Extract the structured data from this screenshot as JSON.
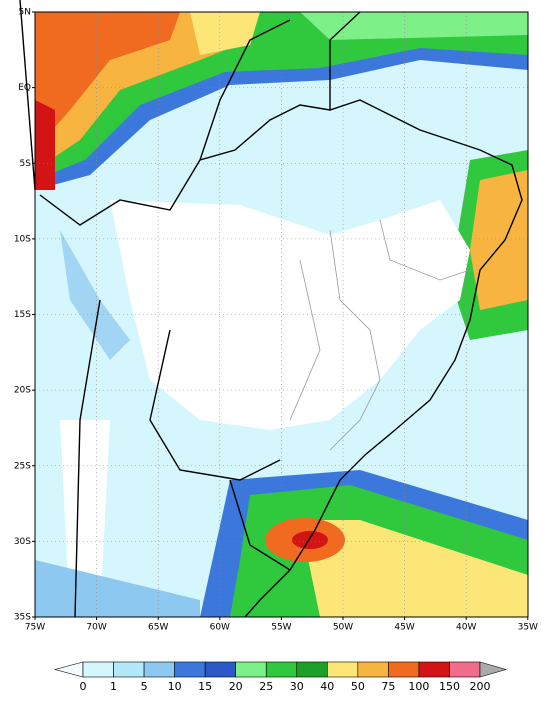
{
  "map": {
    "lat_labels": [
      "5N",
      "EQ",
      "5S",
      "10S",
      "15S",
      "20S",
      "25S",
      "30S",
      "35S"
    ],
    "lon_labels": [
      "75W",
      "70W",
      "65W",
      "60W",
      "55W",
      "50W",
      "45W",
      "40W",
      "35W"
    ]
  },
  "colorbar": {
    "labels": [
      0,
      1,
      5,
      10,
      15,
      20,
      25,
      30,
      40,
      50,
      75,
      100,
      150,
      200
    ],
    "colors": [
      "#f4fcff",
      "#d4f6fc",
      "#b2e8f8",
      "#8cc8f0",
      "#3c78dc",
      "#2a5ac8",
      "#7ef088",
      "#30c83c",
      "#1ea028",
      "#fce678",
      "#f8b440",
      "#f06a20",
      "#d21414",
      "#f06e8c",
      "#aaaaaa"
    ]
  }
}
